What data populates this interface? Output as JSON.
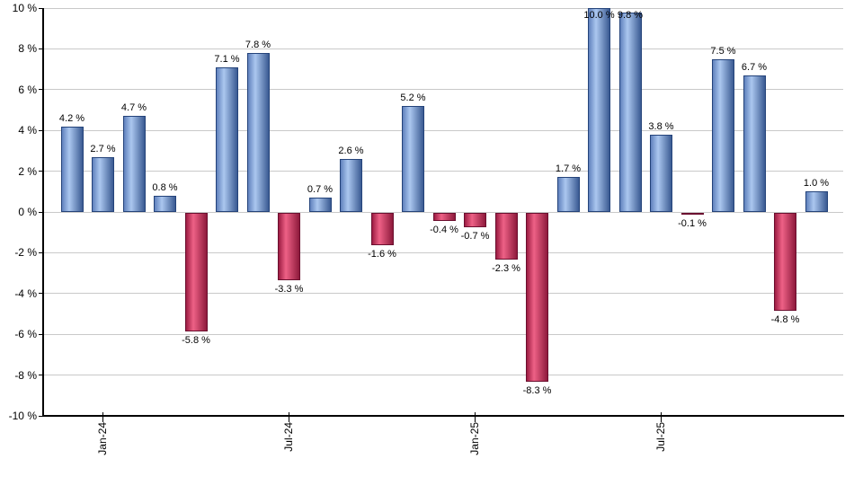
{
  "chart_data": {
    "type": "bar",
    "title": "",
    "xlabel": "",
    "ylabel": "",
    "ylim": [
      -10,
      10
    ],
    "grid": true,
    "legend": "none",
    "values": [
      4.2,
      2.7,
      4.7,
      0.8,
      -5.8,
      7.1,
      7.8,
      -3.3,
      0.7,
      2.6,
      -1.6,
      5.2,
      -0.4,
      -0.7,
      -2.3,
      -8.3,
      1.7,
      10.0,
      9.8,
      3.8,
      -0.1,
      7.5,
      6.7,
      -4.8,
      1.0
    ],
    "value_labels": [
      "4.2 %",
      "2.7 %",
      "4.7 %",
      "0.8 %",
      "-5.8 %",
      "7.1 %",
      "7.8 %",
      "-3.3 %",
      "0.7 %",
      "2.6 %",
      "-1.6 %",
      "5.2 %",
      "-0.4 %",
      "-0.7 %",
      "-2.3 %",
      "-8.3 %",
      "1.7 %",
      "10.0 %",
      "9.8 %",
      "3.8 %",
      "-0.1 %",
      "7.5 %",
      "6.7 %",
      "-4.8 %",
      "1.0 %"
    ],
    "x_ticks": [
      {
        "index": 1,
        "label": "Jan-24"
      },
      {
        "index": 7,
        "label": "Jul-24"
      },
      {
        "index": 13,
        "label": "Jan-25"
      },
      {
        "index": 19,
        "label": "Jul-25"
      }
    ],
    "y_ticks": [
      {
        "value": 10,
        "label": "10 %"
      },
      {
        "value": 8,
        "label": "8 %"
      },
      {
        "value": 6,
        "label": "6 %"
      },
      {
        "value": 4,
        "label": "4 %"
      },
      {
        "value": 2,
        "label": "2 %"
      },
      {
        "value": 0,
        "label": "0 %"
      },
      {
        "value": -2,
        "label": "-2 %"
      },
      {
        "value": -4,
        "label": "-4 %"
      },
      {
        "value": -6,
        "label": "-6 %"
      },
      {
        "value": -8,
        "label": "-8 %"
      },
      {
        "value": -10,
        "label": "-10 %"
      }
    ],
    "colors": {
      "positive_border": "#24437a",
      "positive_edge": "#6081bd",
      "positive_highlight": "#abc7ef",
      "positive_dark_edge": "#3a5a92",
      "negative_border": "#6b0f2f",
      "negative_edge": "#9c1c42",
      "negative_highlight": "#ee6186",
      "negative_dark_edge": "#8e1a3c",
      "gridline": "#c9c9c9",
      "axis": "#000000",
      "label": "#000000",
      "background": "#ffffff"
    }
  }
}
